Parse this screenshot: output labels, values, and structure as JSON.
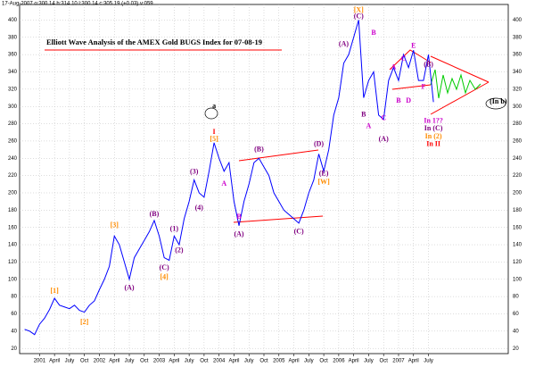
{
  "chart_data": {
    "type": "line",
    "header": "17-Aug-2007 o:300.14 h:314.10 l:300.14 c:305.19 (+0.03) v:059",
    "title": "Elliott Wave Analysis of the AMEX Gold BUGS Index for 07-08-19",
    "x": [
      "2000-10",
      "2000-11",
      "2000-12",
      "2001-01",
      "2001-02",
      "2001-03",
      "2001-04",
      "2001-05",
      "2001-06",
      "2001-07",
      "2001-08",
      "2001-09",
      "2001-10",
      "2001-11",
      "2001-12",
      "2002-01",
      "2002-02",
      "2002-03",
      "2002-04",
      "2002-05",
      "2002-06",
      "2002-07",
      "2002-08",
      "2002-09",
      "2002-10",
      "2002-11",
      "2002-12",
      "2003-01",
      "2003-02",
      "2003-03",
      "2003-04",
      "2003-05",
      "2003-06",
      "2003-07",
      "2003-08",
      "2003-09",
      "2003-10",
      "2003-11",
      "2003-12",
      "2004-01",
      "2004-02",
      "2004-03",
      "2004-04",
      "2004-05",
      "2004-06",
      "2004-07",
      "2004-08",
      "2004-09",
      "2004-10",
      "2004-11",
      "2004-12",
      "2005-01",
      "2005-02",
      "2005-03",
      "2005-04",
      "2005-05",
      "2005-06",
      "2005-07",
      "2005-08",
      "2005-09",
      "2005-10",
      "2005-11",
      "2005-12",
      "2006-01",
      "2006-02",
      "2006-03",
      "2006-04",
      "2006-05",
      "2006-06",
      "2006-07",
      "2006-08",
      "2006-09",
      "2006-10",
      "2006-11",
      "2006-12",
      "2007-01",
      "2007-02",
      "2007-03",
      "2007-04",
      "2007-05",
      "2007-06",
      "2007-07",
      "2007-08"
    ],
    "series": [
      {
        "color": "#0000ff",
        "values": [
          42,
          40,
          36,
          48,
          55,
          65,
          78,
          70,
          68,
          66,
          70,
          64,
          62,
          70,
          75,
          88,
          100,
          115,
          150,
          140,
          120,
          100,
          125,
          135,
          145,
          155,
          168,
          150,
          125,
          122,
          150,
          140,
          170,
          190,
          215,
          200,
          195,
          225,
          258,
          240,
          225,
          235,
          190,
          162,
          190,
          210,
          235,
          240,
          230,
          220,
          200,
          190,
          180,
          175,
          170,
          165,
          180,
          200,
          215,
          245,
          225,
          250,
          290,
          310,
          350,
          360,
          380,
          400,
          310,
          330,
          340,
          290,
          285,
          330,
          345,
          330,
          360,
          345,
          365,
          330,
          330,
          360,
          305
        ]
      }
    ],
    "xlim": [
      "2000-09",
      "2008-11"
    ],
    "xticks": [
      {
        "value": "2001-01",
        "label": "2001"
      },
      {
        "value": "2001-04",
        "label": "April"
      },
      {
        "value": "2001-07",
        "label": "July"
      },
      {
        "value": "2001-10",
        "label": "Oct"
      },
      {
        "value": "2002-01",
        "label": "2002"
      },
      {
        "value": "2002-04",
        "label": "April"
      },
      {
        "value": "2002-07",
        "label": "July"
      },
      {
        "value": "2002-10",
        "label": "Oct"
      },
      {
        "value": "2003-01",
        "label": "2003"
      },
      {
        "value": "2003-04",
        "label": "April"
      },
      {
        "value": "2003-07",
        "label": "July"
      },
      {
        "value": "2003-10",
        "label": "Oct"
      },
      {
        "value": "2004-01",
        "label": "2004"
      },
      {
        "value": "2004-04",
        "label": "April"
      },
      {
        "value": "2004-07",
        "label": "July"
      },
      {
        "value": "2004-10",
        "label": "Oct"
      },
      {
        "value": "2005-01",
        "label": "2005"
      },
      {
        "value": "2005-04",
        "label": "April"
      },
      {
        "value": "2005-07",
        "label": "July"
      },
      {
        "value": "2005-10",
        "label": "Oct"
      },
      {
        "value": "2006-01",
        "label": "2006"
      },
      {
        "value": "2006-04",
        "label": "April"
      },
      {
        "value": "2006-07",
        "label": "July"
      },
      {
        "value": "2006-10",
        "label": "Oct"
      },
      {
        "value": "2007-01",
        "label": "2007"
      },
      {
        "value": "2007-04",
        "label": "April"
      },
      {
        "value": "2007-07",
        "label": "July"
      }
    ],
    "ylim": [
      14,
      418
    ],
    "yticks": [
      20,
      40,
      60,
      80,
      100,
      120,
      140,
      160,
      180,
      200,
      220,
      240,
      260,
      280,
      300,
      320,
      340,
      360,
      380,
      400
    ],
    "grid": true,
    "annotations": [
      {
        "text": "[1]",
        "x": "2001-04",
        "y": 86,
        "color": "#ff8c00"
      },
      {
        "text": "[2]",
        "x": "2001-10",
        "y": 50,
        "color": "#ff8c00"
      },
      {
        "text": "[3]",
        "x": "2002-04",
        "y": 162,
        "color": "#ff8c00"
      },
      {
        "text": "[4]",
        "x": "2003-02",
        "y": 102,
        "color": "#ff8c00"
      },
      {
        "text": "I",
        "x": "2003-12",
        "y": 270,
        "color": "#ff0000"
      },
      {
        "text": "[5]",
        "x": "2003-12",
        "y": 262,
        "color": "#ff8c00"
      },
      {
        "text": "[W]",
        "x": "2005-10",
        "y": 212,
        "color": "#ff8c00"
      },
      {
        "text": "[X]",
        "x": "2006-05",
        "y": 411,
        "color": "#ff8c00"
      },
      {
        "text": "(A)",
        "x": "2002-07",
        "y": 90,
        "color": "#800080"
      },
      {
        "text": "(B)",
        "x": "2002-12",
        "y": 175,
        "color": "#800080"
      },
      {
        "text": "(C)",
        "x": "2003-02",
        "y": 113,
        "color": "#800080"
      },
      {
        "text": "(1)",
        "x": "2003-04",
        "y": 158,
        "color": "#800080"
      },
      {
        "text": "(2)",
        "x": "2003-05",
        "y": 133,
        "color": "#800080"
      },
      {
        "text": "(3)",
        "x": "2003-08",
        "y": 224,
        "color": "#800080"
      },
      {
        "text": "(4)",
        "x": "2003-09",
        "y": 182,
        "color": "#800080"
      },
      {
        "text": "(A)",
        "x": "2004-05",
        "y": 152,
        "color": "#800080"
      },
      {
        "text": "(B)",
        "x": "2004-09",
        "y": 250,
        "color": "#800080"
      },
      {
        "text": "(C)",
        "x": "2005-05",
        "y": 155,
        "color": "#800080"
      },
      {
        "text": "(D)",
        "x": "2005-09",
        "y": 256,
        "color": "#800080"
      },
      {
        "text": "(E)",
        "x": "2005-10",
        "y": 222,
        "color": "#800080"
      },
      {
        "text": "(A)",
        "x": "2006-02",
        "y": 372,
        "color": "#800080"
      },
      {
        "text": "(C)",
        "x": "2006-05",
        "y": 404,
        "color": "#800080"
      },
      {
        "text": "B",
        "x": "2006-06",
        "y": 290,
        "color": "#800080"
      },
      {
        "text": "(A)",
        "x": "2006-10",
        "y": 262,
        "color": "#800080"
      },
      {
        "text": "(B)",
        "x": "2007-07",
        "y": 348,
        "color": "#800080"
      },
      {
        "text": "A",
        "x": "2004-02",
        "y": 210,
        "color": "#cc00cc"
      },
      {
        "text": "B",
        "x": "2004-05",
        "y": 172,
        "color": "#cc00cc"
      },
      {
        "text": "A",
        "x": "2006-07",
        "y": 277,
        "color": "#cc00cc"
      },
      {
        "text": "B",
        "x": "2006-08",
        "y": 385,
        "color": "#cc00cc"
      },
      {
        "text": "C",
        "x": "2006-10",
        "y": 286,
        "color": "#cc00cc"
      },
      {
        "text": "A",
        "x": "2006-12",
        "y": 345,
        "color": "#cc00cc"
      },
      {
        "text": "B",
        "x": "2007-01",
        "y": 306,
        "color": "#cc00cc"
      },
      {
        "text": "C",
        "x": "2007-02",
        "y": 355,
        "color": "#cc00cc"
      },
      {
        "text": "D",
        "x": "2007-03",
        "y": 306,
        "color": "#cc00cc"
      },
      {
        "text": "E",
        "x": "2007-04",
        "y": 370,
        "color": "#cc00cc"
      },
      {
        "text": "F",
        "x": "2007-06",
        "y": 322,
        "color": "#cc00cc"
      },
      {
        "text": "In 1??",
        "x": "2007-08",
        "y": 283,
        "color": "#cc00cc"
      },
      {
        "text": "In (C)",
        "x": "2007-08",
        "y": 274,
        "color": "#800080"
      },
      {
        "text": "In (2)",
        "x": "2007-08",
        "y": 265,
        "color": "#ff8c00"
      },
      {
        "text": "In II",
        "x": "2007-08",
        "y": 256,
        "color": "#ff0000"
      },
      {
        "text": "a",
        "x": "2003-12",
        "y": 300,
        "color": "#000000"
      },
      {
        "text": "(In b)",
        "x": "2008-09",
        "y": 305,
        "color": "#000000"
      }
    ]
  }
}
